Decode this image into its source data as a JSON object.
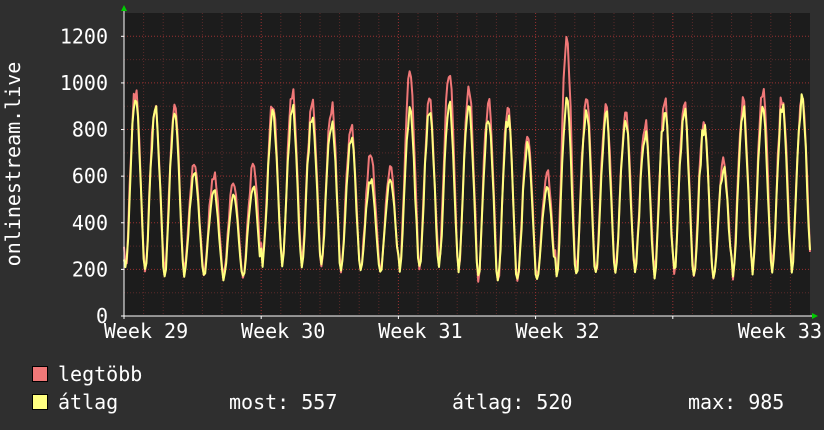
{
  "chart_data": {
    "type": "line",
    "title": "",
    "ylabel": "onlinestream.live",
    "xlabel": "",
    "ylim": [
      0,
      1300
    ],
    "yticks": [
      0,
      200,
      400,
      600,
      800,
      1000,
      1200
    ],
    "x_range_days": [
      0,
      35
    ],
    "x_ticks": [
      {
        "day": 0,
        "label": "Week 29"
      },
      {
        "day": 7,
        "label": "Week 30"
      },
      {
        "day": 14,
        "label": "Week 31"
      },
      {
        "day": 21,
        "label": "Week 32"
      },
      {
        "day": 28,
        "label": "Week 33"
      }
    ],
    "grid": true,
    "series": [
      {
        "name": "legtöbb",
        "color": "#f07878",
        "daily": [
          {
            "peak": 1000,
            "low": 200
          },
          {
            "peak": 920,
            "low": 200
          },
          {
            "peak": 930,
            "low": 180
          },
          {
            "peak": 660,
            "low": 190
          },
          {
            "peak": 620,
            "low": 180
          },
          {
            "peak": 580,
            "low": 170
          },
          {
            "peak": 660,
            "low": 170
          },
          {
            "peak": 920,
            "low": 240
          },
          {
            "peak": 980,
            "low": 220
          },
          {
            "peak": 940,
            "low": 220
          },
          {
            "peak": 920,
            "low": 220
          },
          {
            "peak": 840,
            "low": 200
          },
          {
            "peak": 700,
            "low": 200
          },
          {
            "peak": 640,
            "low": 190
          },
          {
            "peak": 1070,
            "low": 200
          },
          {
            "peak": 960,
            "low": 210
          },
          {
            "peak": 1070,
            "low": 220
          },
          {
            "peak": 1000,
            "low": 210
          },
          {
            "peak": 940,
            "low": 170
          },
          {
            "peak": 930,
            "low": 150
          },
          {
            "peak": 800,
            "low": 150
          },
          {
            "peak": 630,
            "low": 160
          },
          {
            "peak": 1190,
            "low": 170
          },
          {
            "peak": 960,
            "low": 180
          },
          {
            "peak": 920,
            "low": 180
          },
          {
            "peak": 880,
            "low": 200
          },
          {
            "peak": 840,
            "low": 190
          },
          {
            "peak": 940,
            "low": 190
          },
          {
            "peak": 930,
            "low": 190
          },
          {
            "peak": 860,
            "low": 170
          },
          {
            "peak": 680,
            "low": 170
          },
          {
            "peak": 950,
            "low": 180
          },
          {
            "peak": 990,
            "low": 200
          },
          {
            "peak": 960,
            "low": 200
          },
          {
            "peak": 980,
            "low": 220
          },
          {
            "peak": 920,
            "low": 210
          }
        ]
      },
      {
        "name": "átlag",
        "color": "#ffff80",
        "daily": [
          {
            "peak": 960,
            "low": 190
          },
          {
            "peak": 900,
            "low": 190
          },
          {
            "peak": 880,
            "low": 170
          },
          {
            "peak": 620,
            "low": 180
          },
          {
            "peak": 540,
            "low": 170
          },
          {
            "peak": 520,
            "low": 160
          },
          {
            "peak": 560,
            "low": 160
          },
          {
            "peak": 880,
            "low": 230
          },
          {
            "peak": 920,
            "low": 210
          },
          {
            "peak": 880,
            "low": 210
          },
          {
            "peak": 860,
            "low": 210
          },
          {
            "peak": 780,
            "low": 190
          },
          {
            "peak": 600,
            "low": 190
          },
          {
            "peak": 600,
            "low": 180
          },
          {
            "peak": 900,
            "low": 190
          },
          {
            "peak": 900,
            "low": 200
          },
          {
            "peak": 930,
            "low": 210
          },
          {
            "peak": 920,
            "low": 200
          },
          {
            "peak": 870,
            "low": 160
          },
          {
            "peak": 880,
            "low": 140
          },
          {
            "peak": 740,
            "low": 140
          },
          {
            "peak": 560,
            "low": 150
          },
          {
            "peak": 940,
            "low": 160
          },
          {
            "peak": 900,
            "low": 170
          },
          {
            "peak": 880,
            "low": 170
          },
          {
            "peak": 860,
            "low": 190
          },
          {
            "peak": 800,
            "low": 180
          },
          {
            "peak": 900,
            "low": 180
          },
          {
            "peak": 900,
            "low": 180
          },
          {
            "peak": 820,
            "low": 160
          },
          {
            "peak": 640,
            "low": 160
          },
          {
            "peak": 900,
            "low": 170
          },
          {
            "peak": 900,
            "low": 190
          },
          {
            "peak": 920,
            "low": 190
          },
          {
            "peak": 940,
            "low": 210
          },
          {
            "peak": 880,
            "low": 200
          }
        ]
      }
    ],
    "colors": {
      "background": "#2f2f2f",
      "plot_background": "#1c1c1c",
      "grid_major": "#9a3030",
      "grid_minor": "#5a2a2a",
      "axis": "#ffffff",
      "arrow": "#00cc00"
    }
  },
  "legend": {
    "items": [
      {
        "label": "legtöbb",
        "color": "#f07878"
      },
      {
        "label": "átlag",
        "color": "#ffff80"
      }
    ],
    "stats": {
      "now": "most: 557",
      "avg": "átlag: 520",
      "max": "max: 985"
    }
  }
}
